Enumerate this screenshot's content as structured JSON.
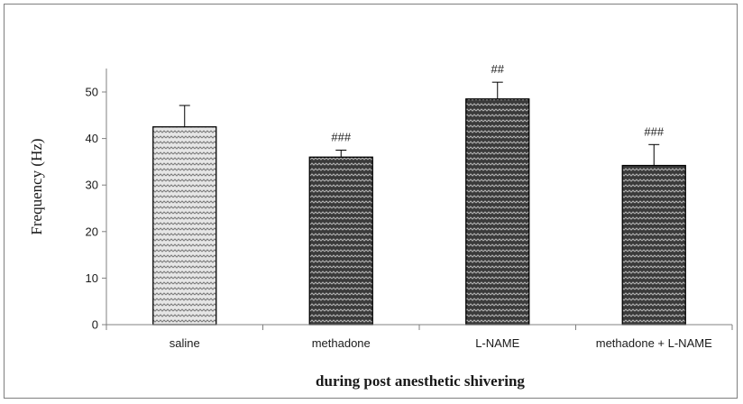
{
  "chart_data": {
    "type": "bar",
    "categories": [
      "saline",
      "methadone",
      "L-NAME",
      "methadone + L-NAME"
    ],
    "values": [
      42.5,
      36.0,
      48.5,
      34.2
    ],
    "errors": [
      4.6,
      1.5,
      3.6,
      4.5
    ],
    "annotations": [
      "",
      "###",
      "##",
      "###"
    ],
    "xlabel": "during post anesthetic shivering",
    "ylabel": "Frequency (Hz)",
    "ylim": [
      0,
      50
    ],
    "yticks": [
      0,
      10,
      20,
      30,
      40,
      50
    ],
    "grid": false,
    "bar_patterns": [
      "light-zigzag",
      "dark-zigzag",
      "dark-zigzag",
      "dark-zigzag"
    ],
    "colors": {
      "light_bar": "#c8c8c8",
      "dark_bar": "#5a5a5a",
      "axis": "#808080",
      "bar_border": "#000000"
    }
  }
}
